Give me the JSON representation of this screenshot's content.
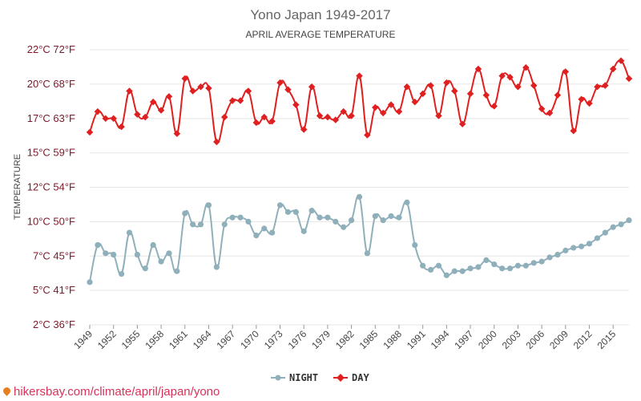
{
  "chart_data": {
    "type": "line",
    "title": "Yono Japan 1949-2017",
    "subtitle": "APRIL AVERAGE TEMPERATURE",
    "ylabel": "TEMPERATURE",
    "ylim": [
      2.2,
      22.2
    ],
    "xlim": [
      1949,
      2017
    ],
    "y_ticks": [
      {
        "value": 2.2,
        "label": "2°C 36°F"
      },
      {
        "value": 4.7,
        "label": "5°C 41°F"
      },
      {
        "value": 7.2,
        "label": "7°C 45°F"
      },
      {
        "value": 9.7,
        "label": "10°C 50°F"
      },
      {
        "value": 12.2,
        "label": "12°C 54°F"
      },
      {
        "value": 14.7,
        "label": "15°C 59°F"
      },
      {
        "value": 17.2,
        "label": "17°C 63°F"
      },
      {
        "value": 19.7,
        "label": "20°C 68°F"
      },
      {
        "value": 22.2,
        "label": "22°C 72°F"
      }
    ],
    "x_ticks": [
      1949,
      1952,
      1955,
      1958,
      1961,
      1964,
      1967,
      1970,
      1973,
      1976,
      1979,
      1982,
      1985,
      1988,
      1991,
      1994,
      1997,
      2000,
      2003,
      2006,
      2009,
      2012,
      2015
    ],
    "legend": {
      "position": "bottom-center"
    },
    "grid": true,
    "x": [
      1949,
      1950,
      1951,
      1952,
      1953,
      1954,
      1955,
      1956,
      1957,
      1958,
      1959,
      1960,
      1961,
      1962,
      1963,
      1964,
      1965,
      1966,
      1967,
      1968,
      1969,
      1970,
      1971,
      1972,
      1973,
      1974,
      1975,
      1976,
      1977,
      1978,
      1979,
      1980,
      1981,
      1982,
      1983,
      1984,
      1985,
      1986,
      1987,
      1988,
      1989,
      1990,
      1991,
      1992,
      1993,
      1994,
      1995,
      1996,
      1997,
      1998,
      1999,
      2000,
      2001,
      2002,
      2003,
      2004,
      2005,
      2006,
      2007,
      2008,
      2009,
      2010,
      2011,
      2012,
      2013,
      2014,
      2015,
      2016,
      2017
    ],
    "series": [
      {
        "name": "NIGHT",
        "color": "#8fb0ba",
        "values": [
          5.3,
          8.0,
          7.4,
          7.3,
          5.9,
          8.9,
          7.3,
          6.3,
          8.0,
          6.8,
          7.4,
          6.1,
          10.3,
          9.5,
          9.5,
          10.9,
          6.4,
          9.5,
          10.0,
          10.0,
          9.7,
          8.7,
          9.2,
          8.9,
          10.9,
          10.4,
          10.4,
          9.0,
          10.5,
          10.0,
          10.0,
          9.7,
          9.3,
          9.8,
          11.5,
          7.4,
          10.1,
          9.8,
          10.1,
          10.0,
          11.1,
          8.0,
          6.5,
          6.2,
          6.5,
          5.8,
          6.1,
          6.1,
          6.3,
          6.4,
          6.9,
          6.6,
          6.3,
          6.3,
          6.5,
          6.5,
          6.7,
          6.8,
          7.1,
          7.3,
          7.6,
          7.8,
          7.9,
          8.1,
          8.5,
          8.9,
          9.3,
          9.5,
          9.8
        ]
      },
      {
        "name": "DAY",
        "color": "#e02020",
        "values": [
          16.2,
          17.7,
          17.2,
          17.2,
          16.6,
          19.2,
          17.5,
          17.3,
          18.4,
          17.8,
          18.8,
          16.1,
          20.1,
          19.2,
          19.5,
          19.4,
          15.5,
          17.3,
          18.5,
          18.5,
          19.2,
          16.9,
          17.3,
          17.0,
          19.8,
          19.3,
          18.2,
          16.4,
          19.5,
          17.4,
          17.3,
          17.1,
          17.7,
          17.4,
          20.3,
          16.0,
          18.0,
          17.6,
          18.2,
          17.7,
          19.5,
          18.4,
          19.0,
          19.6,
          17.4,
          19.8,
          19.2,
          16.8,
          19.0,
          20.8,
          18.9,
          18.1,
          20.3,
          20.2,
          19.5,
          20.9,
          19.6,
          17.9,
          17.6,
          18.9,
          20.6,
          16.3,
          18.6,
          18.3,
          19.5,
          19.6,
          20.8,
          21.4,
          20.1
        ]
      }
    ]
  },
  "watermark": {
    "text": "hikersbay.com/climate/april/japan/yono",
    "icon": "location-pin-icon"
  }
}
